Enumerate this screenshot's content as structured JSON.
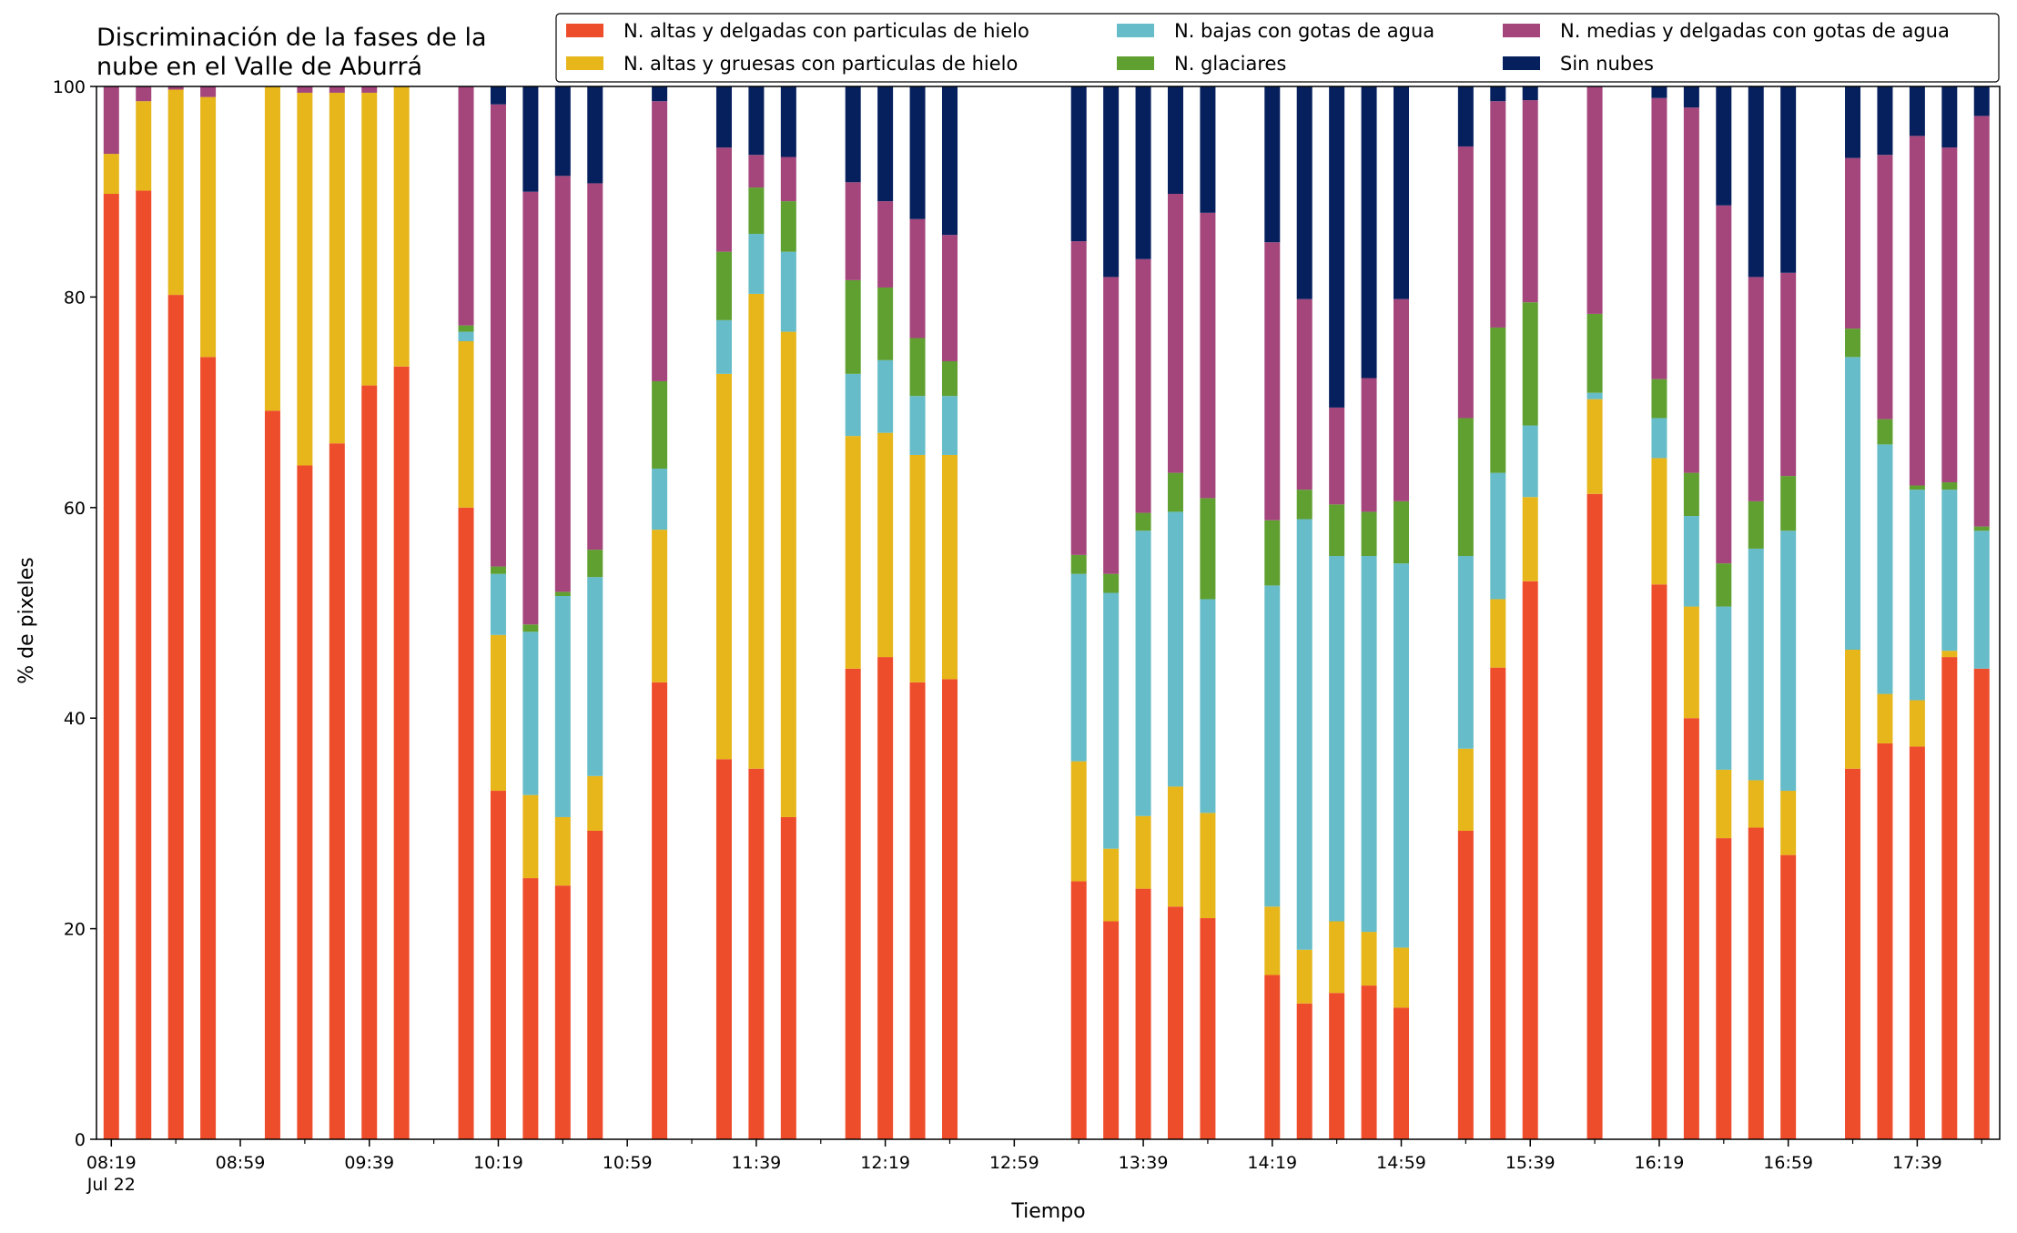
{
  "chart_data": {
    "type": "bar",
    "stacked": true,
    "title": "Discriminación de la fases de la\nnube en el Valle de Aburrá",
    "xlabel": "Tiempo",
    "ylabel": "% de pixeles",
    "ylim": [
      0,
      100
    ],
    "yticks": [
      0,
      20,
      40,
      60,
      80,
      100
    ],
    "xticks": [
      "08:19",
      "08:59",
      "09:39",
      "10:19",
      "10:59",
      "11:39",
      "12:19",
      "12:59",
      "13:39",
      "14:19",
      "14:59",
      "15:39",
      "16:19",
      "16:59",
      "17:39"
    ],
    "xtick_date": "Jul 22",
    "x_unit": "10 min slots from 08:19",
    "legend_position": "top-right",
    "grid": false,
    "series": [
      {
        "name": "N. altas y delgadas con particulas de hielo",
        "color": "#ee4d2c"
      },
      {
        "name": "N. altas y gruesas con particulas de hielo",
        "color": "#e6b61b"
      },
      {
        "name": "N. bajas con gotas de agua",
        "color": "#66bcc8"
      },
      {
        "name": "N. glaciares",
        "color": "#60a031"
      },
      {
        "name": "N. medias y delgadas con gotas de agua",
        "color": "#a4467c"
      },
      {
        "name": "Sin nubes",
        "color": "#06205e"
      }
    ],
    "legend_order": [
      0,
      2,
      4,
      1,
      3,
      5
    ],
    "bars": [
      {
        "time": "08:19",
        "values": [
          89.8,
          3.8,
          0,
          0,
          6.4,
          0
        ]
      },
      {
        "time": "08:29",
        "values": [
          90.1,
          8.5,
          0,
          0,
          1.4,
          0
        ]
      },
      {
        "time": "08:39",
        "values": [
          80.2,
          19.5,
          0,
          0,
          0.3,
          0
        ]
      },
      {
        "time": "08:49",
        "values": [
          74.3,
          24.7,
          0,
          0,
          1.0,
          0
        ]
      },
      {
        "time": "09:09",
        "values": [
          69.2,
          30.8,
          0,
          0,
          0,
          0
        ]
      },
      {
        "time": "09:19",
        "values": [
          64.0,
          35.4,
          0,
          0,
          0.6,
          0
        ]
      },
      {
        "time": "09:29",
        "values": [
          66.1,
          33.3,
          0,
          0,
          0.6,
          0
        ]
      },
      {
        "time": "09:39",
        "values": [
          71.6,
          27.8,
          0,
          0,
          0.6,
          0
        ]
      },
      {
        "time": "09:49",
        "values": [
          73.4,
          26.6,
          0,
          0,
          0,
          0
        ]
      },
      {
        "time": "10:09",
        "values": [
          60.0,
          15.8,
          0.9,
          0.6,
          22.7,
          0
        ]
      },
      {
        "time": "10:19",
        "values": [
          33.1,
          14.8,
          5.8,
          0.7,
          43.9,
          1.7
        ]
      },
      {
        "time": "10:29",
        "values": [
          24.8,
          7.9,
          15.5,
          0.7,
          41.1,
          10.0
        ]
      },
      {
        "time": "10:39",
        "values": [
          24.1,
          6.5,
          21.0,
          0.4,
          39.5,
          8.5
        ]
      },
      {
        "time": "10:49",
        "values": [
          29.3,
          5.2,
          18.9,
          2.6,
          34.8,
          9.2
        ]
      },
      {
        "time": "11:09",
        "values": [
          43.4,
          14.5,
          5.8,
          8.3,
          26.6,
          1.4
        ]
      },
      {
        "time": "11:29",
        "values": [
          36.1,
          36.6,
          5.1,
          6.5,
          9.9,
          5.8
        ]
      },
      {
        "time": "11:39",
        "values": [
          35.2,
          45.1,
          5.7,
          4.4,
          3.1,
          6.5
        ]
      },
      {
        "time": "11:49",
        "values": [
          30.6,
          46.1,
          7.6,
          4.8,
          4.2,
          6.7
        ]
      },
      {
        "time": "12:09",
        "values": [
          44.7,
          22.1,
          5.9,
          8.9,
          9.3,
          9.1
        ]
      },
      {
        "time": "12:19",
        "values": [
          45.8,
          21.3,
          6.9,
          6.9,
          8.2,
          10.9
        ]
      },
      {
        "time": "12:29",
        "values": [
          43.4,
          21.6,
          5.6,
          5.5,
          11.3,
          12.6
        ]
      },
      {
        "time": "12:39",
        "values": [
          43.7,
          21.3,
          5.6,
          3.3,
          12.0,
          14.1
        ]
      },
      {
        "time": "13:19",
        "values": [
          24.5,
          11.4,
          17.8,
          1.8,
          29.8,
          14.7
        ]
      },
      {
        "time": "13:29",
        "values": [
          20.7,
          6.9,
          24.3,
          1.8,
          28.2,
          18.1
        ]
      },
      {
        "time": "13:39",
        "values": [
          23.8,
          6.9,
          27.1,
          1.7,
          24.1,
          16.4
        ]
      },
      {
        "time": "13:49",
        "values": [
          22.1,
          11.4,
          26.1,
          3.7,
          26.5,
          10.2
        ]
      },
      {
        "time": "13:59",
        "values": [
          21.0,
          10.0,
          20.3,
          9.6,
          27.1,
          12.0
        ]
      },
      {
        "time": "14:19",
        "values": [
          15.6,
          6.5,
          30.5,
          6.2,
          26.4,
          14.8
        ]
      },
      {
        "time": "14:29",
        "values": [
          12.9,
          5.1,
          40.9,
          2.8,
          18.1,
          20.2
        ]
      },
      {
        "time": "14:39",
        "values": [
          13.9,
          6.8,
          34.7,
          4.9,
          9.2,
          30.5
        ]
      },
      {
        "time": "14:49",
        "values": [
          14.6,
          5.1,
          35.7,
          4.2,
          12.7,
          27.7
        ]
      },
      {
        "time": "14:59",
        "values": [
          12.5,
          5.7,
          36.5,
          5.9,
          19.2,
          20.2
        ]
      },
      {
        "time": "15:19",
        "values": [
          29.3,
          7.8,
          18.3,
          13.1,
          25.8,
          5.7
        ]
      },
      {
        "time": "15:29",
        "values": [
          44.8,
          6.5,
          12.0,
          13.8,
          21.5,
          1.4
        ]
      },
      {
        "time": "15:39",
        "values": [
          53.0,
          8.0,
          6.8,
          11.7,
          19.2,
          1.3
        ]
      },
      {
        "time": "15:59",
        "values": [
          61.3,
          9.0,
          0.6,
          7.5,
          21.6,
          0
        ]
      },
      {
        "time": "16:19",
        "values": [
          52.7,
          12.0,
          3.8,
          3.7,
          26.7,
          1.1
        ]
      },
      {
        "time": "16:29",
        "values": [
          40.0,
          10.6,
          8.6,
          4.1,
          34.7,
          2.0
        ]
      },
      {
        "time": "16:39",
        "values": [
          28.6,
          6.5,
          15.5,
          4.1,
          34.0,
          11.3
        ]
      },
      {
        "time": "16:49",
        "values": [
          29.6,
          4.5,
          22.0,
          4.5,
          21.3,
          18.1
        ]
      },
      {
        "time": "16:59",
        "values": [
          27.0,
          6.1,
          24.7,
          5.2,
          19.3,
          17.7
        ]
      },
      {
        "time": "17:19",
        "values": [
          35.2,
          11.3,
          27.8,
          2.7,
          16.2,
          6.8
        ]
      },
      {
        "time": "17:29",
        "values": [
          37.6,
          4.7,
          23.7,
          2.4,
          25.1,
          6.5
        ]
      },
      {
        "time": "17:39",
        "values": [
          37.3,
          4.4,
          20.0,
          0.4,
          33.2,
          4.7
        ]
      },
      {
        "time": "17:49",
        "values": [
          45.8,
          0.6,
          15.3,
          0.7,
          31.8,
          5.8
        ]
      },
      {
        "time": "17:59",
        "values": [
          44.7,
          0,
          13.1,
          0.4,
          39.0,
          2.8
        ]
      }
    ]
  }
}
